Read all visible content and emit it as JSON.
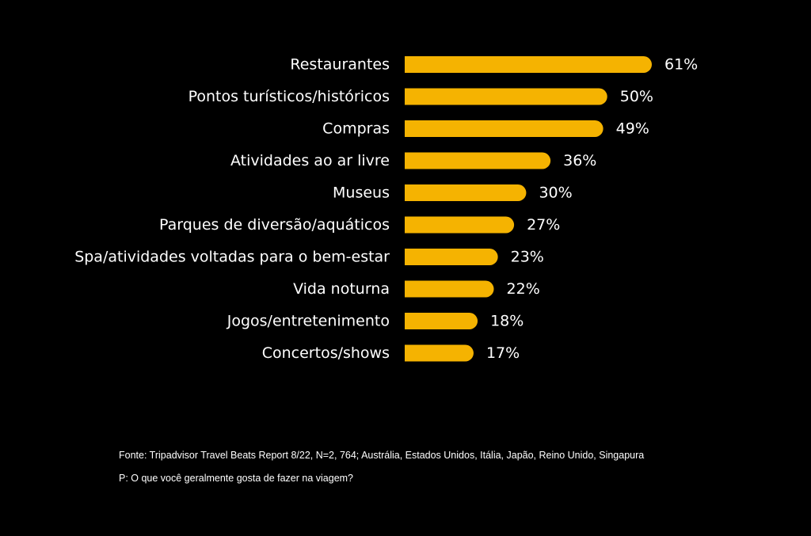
{
  "chart_data": {
    "type": "bar",
    "orientation": "horizontal",
    "categories": [
      "Restaurantes",
      "Pontos turísticos/históricos",
      "Compras",
      "Atividades ao ar livre",
      "Museus",
      "Parques de diversão/aquáticos",
      "Spa/atividades voltadas para o bem-estar",
      "Vida noturna",
      "Jogos/entretenimento",
      "Concertos/shows"
    ],
    "values": [
      61,
      50,
      49,
      36,
      30,
      27,
      23,
      22,
      18,
      17
    ],
    "value_labels": [
      "61%",
      "50%",
      "49%",
      "36%",
      "30%",
      "27%",
      "23%",
      "22%",
      "18%",
      "17%"
    ],
    "unit": "%",
    "xlim": [
      0,
      61
    ],
    "grid": false,
    "bar_color": "#F5B301",
    "background_color": "#000000",
    "text_color": "#FFFFFF"
  },
  "footer": {
    "source": "Fonte: Tripadvisor Travel Beats Report 8/22, N=2, 764; Austrália, Estados Unidos, Itália, Japão, Reino Unido, Singapura",
    "question": "P: O que você geralmente gosta de fazer na viagem?"
  }
}
